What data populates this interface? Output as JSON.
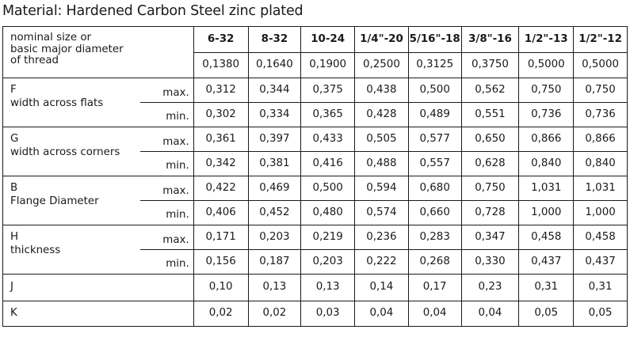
{
  "title": "Material: Hardened Carbon Steel zinc plated",
  "header": {
    "label_lines": [
      "nominal size or",
      "basic major diameter",
      "of thread"
    ],
    "sizes": [
      "6-32",
      "8-32",
      "10-24",
      "1/4\"-20",
      "5/16\"-18",
      "3/8\"-16",
      "1/2\"-13",
      "1/2\"-12"
    ],
    "diameters": [
      "0,1380",
      "0,1640",
      "0,1900",
      "0,2500",
      "0,3125",
      "0,3750",
      "0,5000",
      "0,5000"
    ]
  },
  "rows": [
    {
      "letter": "F",
      "desc": "width across flats",
      "max_label": "max.",
      "min_label": "min.",
      "max": [
        "0,312",
        "0,344",
        "0,375",
        "0,438",
        "0,500",
        "0,562",
        "0,750",
        "0,750"
      ],
      "min": [
        "0,302",
        "0,334",
        "0,365",
        "0,428",
        "0,489",
        "0,551",
        "0,736",
        "0,736"
      ]
    },
    {
      "letter": "G",
      "desc": "width across corners",
      "max_label": "max.",
      "min_label": "min.",
      "max": [
        "0,361",
        "0,397",
        "0,433",
        "0,505",
        "0,577",
        "0,650",
        "0,866",
        "0,866"
      ],
      "min": [
        "0,342",
        "0,381",
        "0,416",
        "0,488",
        "0,557",
        "0,628",
        "0,840",
        "0,840"
      ]
    },
    {
      "letter": "B",
      "desc": "Flange Diameter",
      "max_label": "max.",
      "min_label": "min.",
      "max": [
        "0,422",
        "0,469",
        "0,500",
        "0,594",
        "0,680",
        "0,750",
        "1,031",
        "1,031"
      ],
      "min": [
        "0,406",
        "0,452",
        "0,480",
        "0,574",
        "0,660",
        "0,728",
        "1,000",
        "1,000"
      ]
    },
    {
      "letter": "H",
      "desc": "thickness",
      "max_label": "max.",
      "min_label": "min.",
      "max": [
        "0,171",
        "0,203",
        "0,219",
        "0,236",
        "0,283",
        "0,347",
        "0,458",
        "0,458"
      ],
      "min": [
        "0,156",
        "0,187",
        "0,203",
        "0,222",
        "0,268",
        "0,330",
        "0,437",
        "0,437"
      ]
    }
  ],
  "single_rows": [
    {
      "letter": "J",
      "values": [
        "0,10",
        "0,13",
        "0,13",
        "0,14",
        "0,17",
        "0,23",
        "0,31",
        "0,31"
      ]
    },
    {
      "letter": "K",
      "values": [
        "0,02",
        "0,02",
        "0,03",
        "0,04",
        "0,04",
        "0,04",
        "0,05",
        "0,05"
      ]
    }
  ]
}
